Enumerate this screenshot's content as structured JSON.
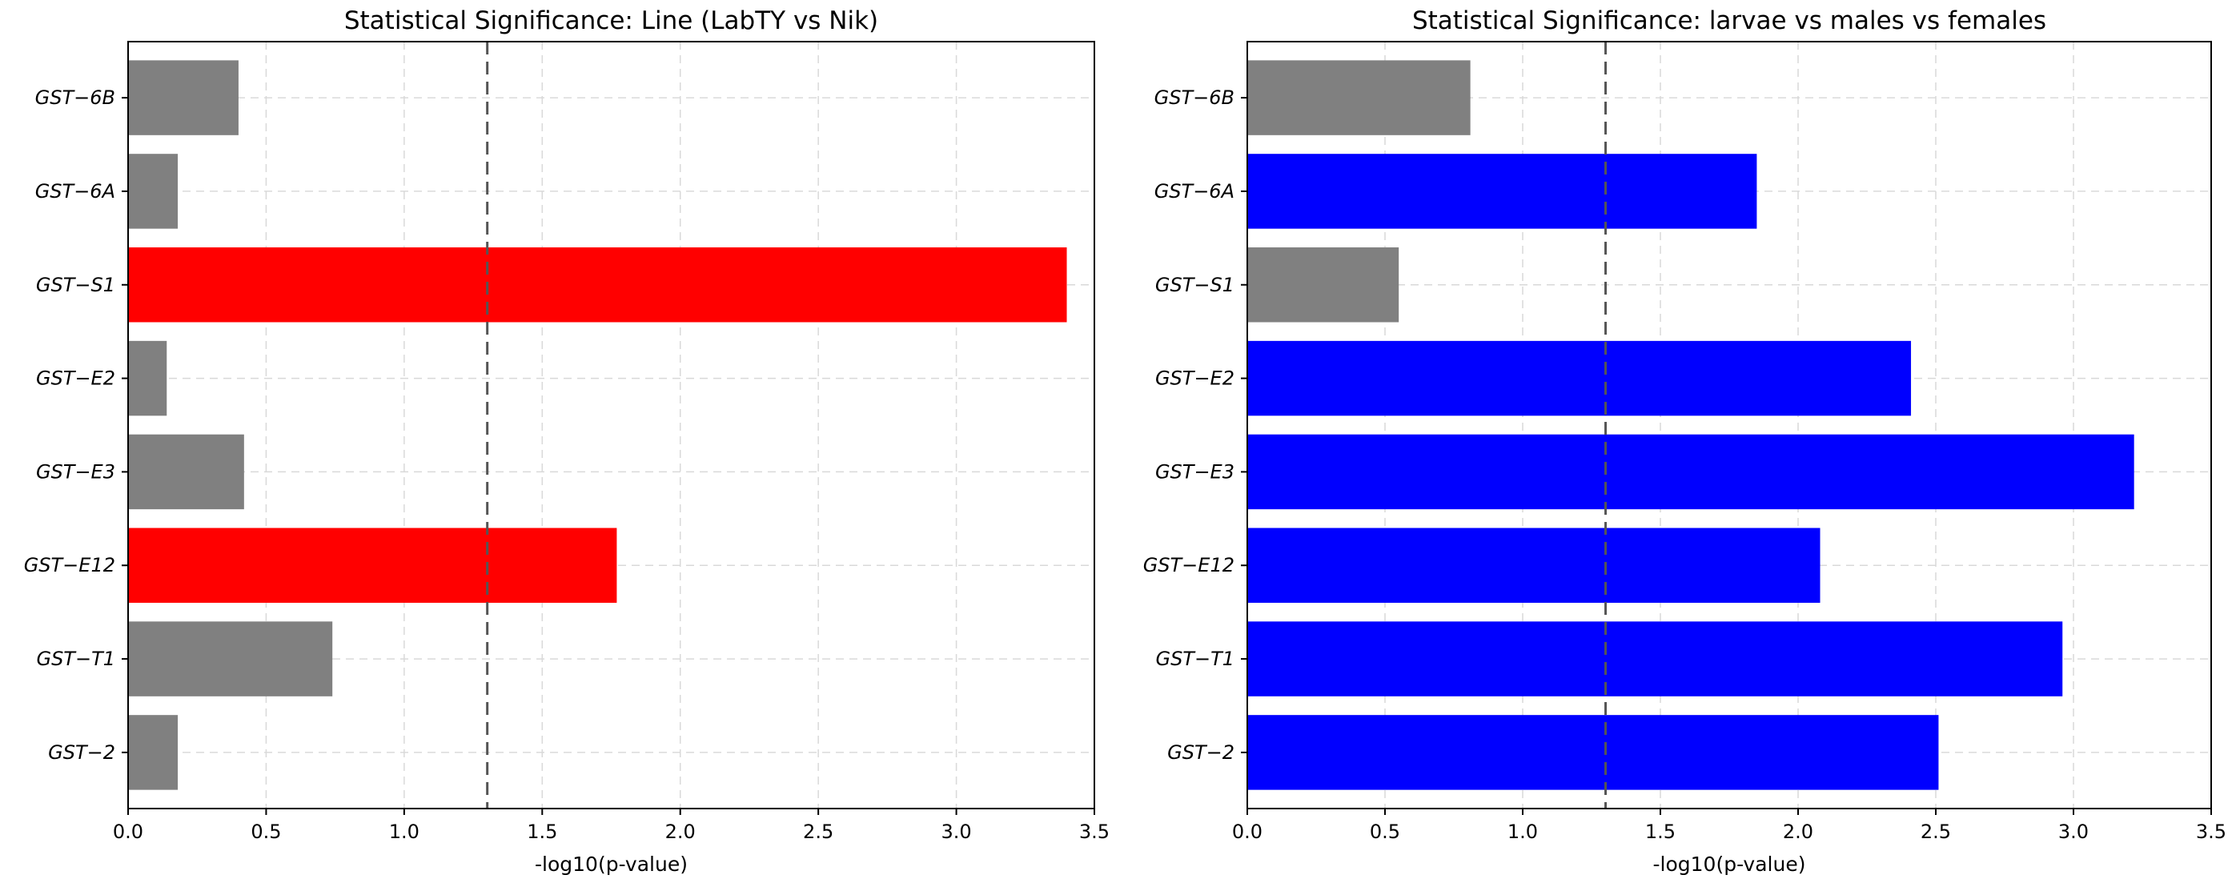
{
  "colors": {
    "significant_left": "#ff0000",
    "significant_right": "#0000ff",
    "not_significant": "#808080",
    "threshold_line": "#555555"
  },
  "chart_data": [
    {
      "type": "bar",
      "orientation": "horizontal",
      "title": "Statistical Significance: Line (LabTY vs Nik)",
      "xlabel": "-log10(p-value)",
      "ylabel": "",
      "xlim": [
        0,
        3.5
      ],
      "xticks": [
        "0.0",
        "0.5",
        "1.0",
        "1.5",
        "2.0",
        "2.5",
        "3.0",
        "3.5"
      ],
      "threshold": 1.301,
      "grid": true,
      "categories": [
        "GST−6B",
        "GST−6A",
        "GST−S1",
        "GST−E2",
        "GST−E3",
        "GST−E12",
        "GST−T1",
        "GST−2"
      ],
      "values": [
        0.4,
        0.18,
        3.4,
        0.14,
        0.42,
        1.77,
        0.74,
        0.18
      ],
      "bar_colors": [
        "#808080",
        "#808080",
        "#ff0000",
        "#808080",
        "#808080",
        "#ff0000",
        "#808080",
        "#808080"
      ]
    },
    {
      "type": "bar",
      "orientation": "horizontal",
      "title": "Statistical Significance: larvae vs males vs females",
      "xlabel": "-log10(p-value)",
      "ylabel": "",
      "xlim": [
        0,
        3.5
      ],
      "xticks": [
        "0.0",
        "0.5",
        "1.0",
        "1.5",
        "2.0",
        "2.5",
        "3.0",
        "3.5"
      ],
      "threshold": 1.301,
      "grid": true,
      "categories": [
        "GST−6B",
        "GST−6A",
        "GST−S1",
        "GST−E2",
        "GST−E3",
        "GST−E12",
        "GST−T1",
        "GST−2"
      ],
      "values": [
        0.81,
        1.85,
        0.55,
        2.41,
        3.22,
        2.08,
        2.96,
        2.51
      ],
      "bar_colors": [
        "#808080",
        "#0000ff",
        "#808080",
        "#0000ff",
        "#0000ff",
        "#0000ff",
        "#0000ff",
        "#0000ff"
      ]
    }
  ]
}
